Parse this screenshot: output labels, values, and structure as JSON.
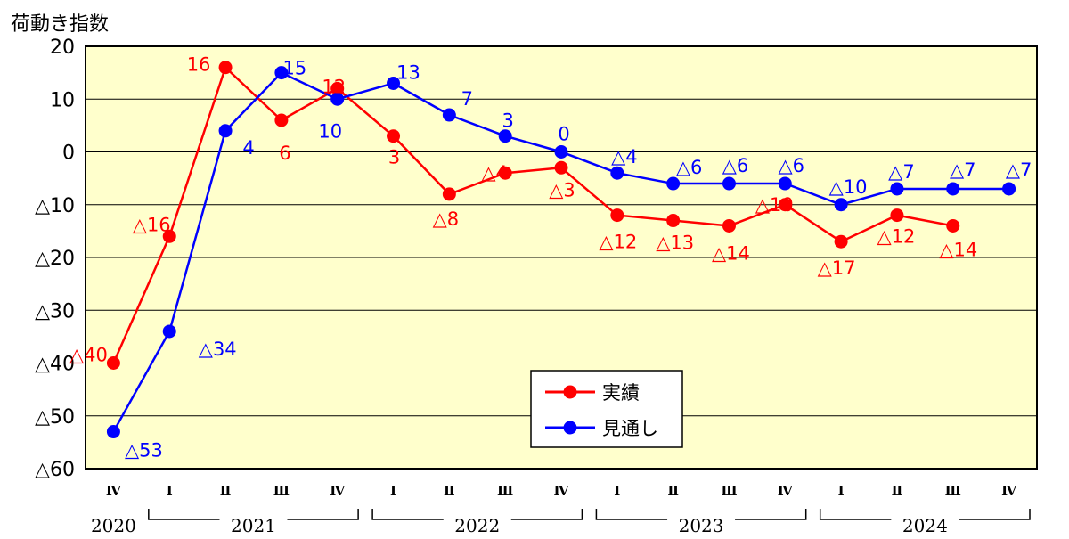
{
  "chart_data": {
    "type": "line",
    "y_title": "荷動き指数",
    "ylim": [
      -60,
      20
    ],
    "y_ticks": [
      {
        "value": 20,
        "label": "20"
      },
      {
        "value": 10,
        "label": "10"
      },
      {
        "value": 0,
        "label": "0"
      },
      {
        "value": -10,
        "label": "△10"
      },
      {
        "value": -20,
        "label": "△20"
      },
      {
        "value": -30,
        "label": "△30"
      },
      {
        "value": -40,
        "label": "△40"
      },
      {
        "value": -50,
        "label": "△50"
      },
      {
        "value": -60,
        "label": "△60"
      }
    ],
    "categories": [
      "Ⅳ",
      "Ⅰ",
      "Ⅱ",
      "Ⅲ",
      "Ⅳ",
      "Ⅰ",
      "Ⅱ",
      "Ⅲ",
      "Ⅳ",
      "Ⅰ",
      "Ⅱ",
      "Ⅲ",
      "Ⅳ",
      "Ⅰ",
      "Ⅱ",
      "Ⅲ",
      "Ⅳ"
    ],
    "years": [
      {
        "label": "2020",
        "start": 0,
        "end": 0,
        "bracket": false
      },
      {
        "label": "2021",
        "start": 1,
        "end": 4,
        "bracket": true
      },
      {
        "label": "2022",
        "start": 5,
        "end": 8,
        "bracket": true
      },
      {
        "label": "2023",
        "start": 9,
        "end": 12,
        "bracket": true
      },
      {
        "label": "2024",
        "start": 13,
        "end": 16,
        "bracket": true
      }
    ],
    "grid": true,
    "legend_position": "bottom-center",
    "series": [
      {
        "name": "実績",
        "color": "#ff0000",
        "values": [
          -40,
          -16,
          16,
          6,
          12,
          3,
          -8,
          -4,
          -3,
          -12,
          -13,
          -14,
          -10,
          -17,
          -12,
          -14,
          null
        ],
        "labels": [
          "△40",
          "△16",
          "16",
          "6",
          "12",
          "3",
          "△8",
          "△4",
          "△3",
          "△12",
          "△13",
          "△14",
          "△10",
          "△17",
          "△12",
          "△14",
          ""
        ]
      },
      {
        "name": "見通し",
        "color": "#0000ff",
        "values": [
          -53,
          -34,
          4,
          15,
          10,
          13,
          7,
          3,
          0,
          -4,
          -6,
          -6,
          -6,
          -10,
          -7,
          -7,
          -7
        ],
        "labels": [
          "△53",
          "△34",
          "4",
          "15",
          "10",
          "13",
          "7",
          "3",
          "0",
          "△4",
          "△6",
          "△6",
          "△6",
          "△10",
          "△7",
          "△7",
          "△7"
        ]
      }
    ]
  },
  "colors": {
    "plot_background": "#ffffcc",
    "frame": "#000000",
    "grid": "#000000"
  }
}
